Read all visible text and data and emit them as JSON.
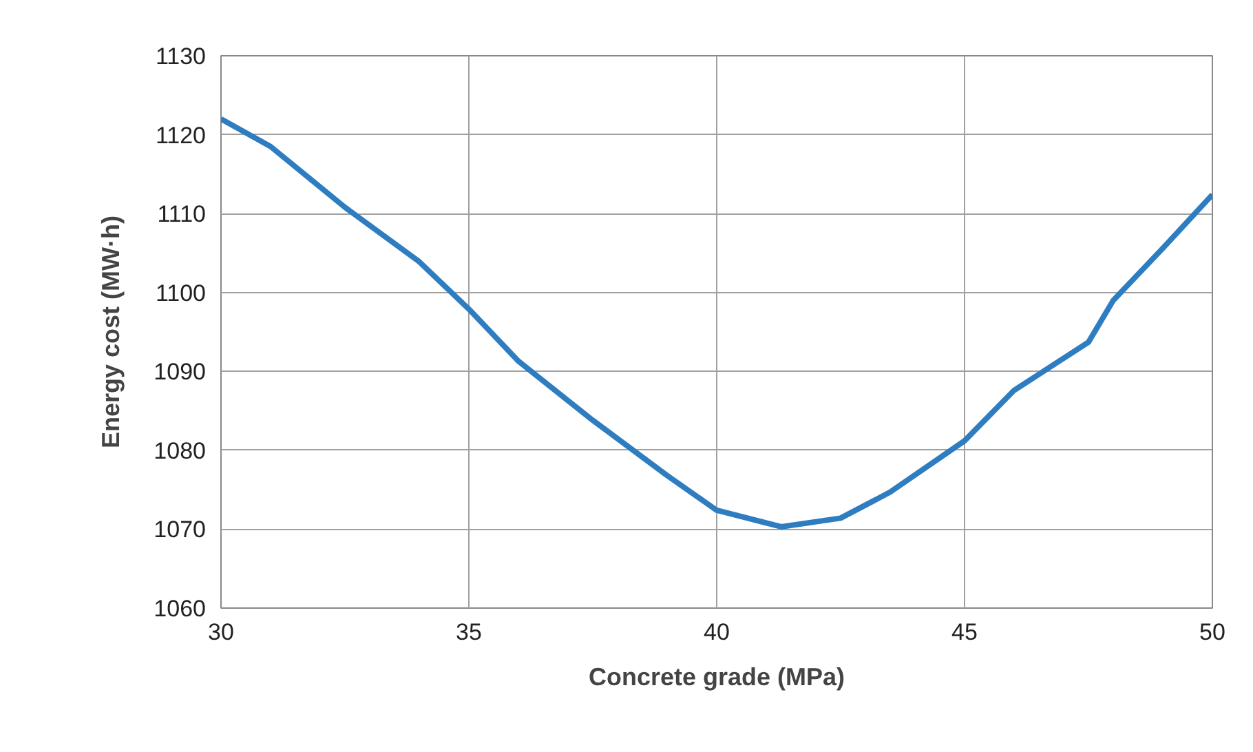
{
  "chart_data": {
    "type": "line",
    "xlabel": "Concrete grade (MPa)",
    "ylabel": "Energy cost (MW·h)",
    "x": [
      30,
      31,
      32.5,
      34,
      35,
      36,
      37.5,
      39,
      40,
      41.3,
      42.5,
      43.5,
      45,
      46,
      47.5,
      48,
      49,
      50
    ],
    "series": [
      {
        "color": "#2e7dc1",
        "values": [
          1122,
          1118.5,
          1110.8,
          1103.9,
          1097.9,
          1091.3,
          1083.8,
          1076.8,
          1072.4,
          1070.3,
          1071.4,
          1074.7,
          1081.2,
          1087.6,
          1093.7,
          1099,
          1105.6,
          1112.4
        ]
      }
    ],
    "xlim": [
      30,
      50
    ],
    "ylim": [
      1060,
      1130
    ],
    "xticks": [
      30,
      35,
      40,
      45,
      50
    ],
    "yticks": [
      1060,
      1070,
      1080,
      1090,
      1100,
      1110,
      1120,
      1130
    ],
    "grid": true,
    "marker": "none",
    "line_style": "solid"
  }
}
